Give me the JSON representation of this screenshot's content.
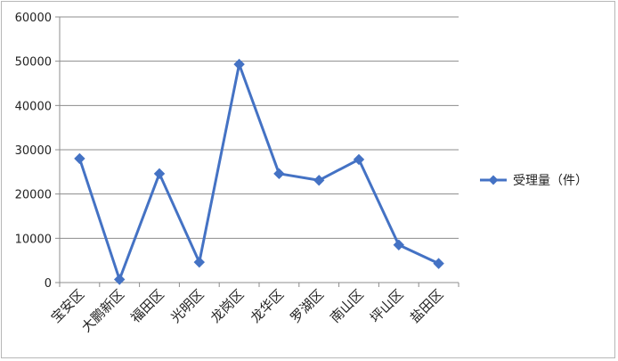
{
  "chart_data": {
    "type": "line",
    "title": "",
    "xlabel": "",
    "ylabel": "",
    "ylim": [
      0,
      60000
    ],
    "yticks": [
      0,
      10000,
      20000,
      30000,
      40000,
      50000,
      60000
    ],
    "grid": true,
    "legend_position": "right",
    "categories": [
      "宝安区",
      "大鹏新区",
      "福田区",
      "光明区",
      "龙岗区",
      "龙华区",
      "罗湖区",
      "南山区",
      "坪山区",
      "盐田区"
    ],
    "series": [
      {
        "name": "受理量（件）",
        "color": "#4472c4",
        "marker": "diamond",
        "values": [
          28000,
          700,
          24600,
          4600,
          49300,
          24600,
          23100,
          27800,
          8500,
          4300
        ]
      }
    ]
  }
}
